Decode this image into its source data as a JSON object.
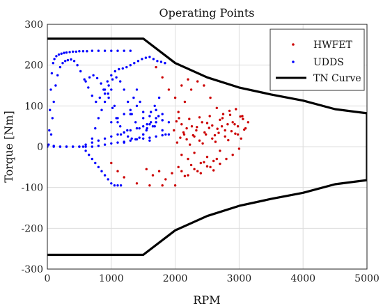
{
  "chart_data": {
    "type": "scatter",
    "title": "Operating Points",
    "xlabel": "RPM",
    "ylabel": "Torque [Nm]",
    "xlim": [
      0,
      5000
    ],
    "ylim": [
      -300,
      300
    ],
    "xticks": [
      "0",
      "1000",
      "2000",
      "3000",
      "4000",
      "5000"
    ],
    "yticks": [
      "300",
      "200",
      "100",
      "0",
      "-100",
      "-200",
      "-300"
    ],
    "grid": true,
    "legend_position": "top-right",
    "colors": {
      "HWFET": "#cc0000",
      "UDDS": "#0000ff",
      "TN Curve": "#000000"
    },
    "series": [
      {
        "name": "HWFET",
        "marker": "dot",
        "x": [
          1980,
          2020,
          2060,
          2100,
          2140,
          2180,
          2220,
          2260,
          2300,
          2340,
          2380,
          2420,
          2460,
          2500,
          2540,
          2580,
          2620,
          2660,
          2700,
          2740,
          2780,
          2820,
          2860,
          2900,
          2940,
          2980,
          3020,
          3060,
          3100,
          3140,
          2030,
          2080,
          2130,
          2180,
          2230,
          2280,
          2330,
          2380,
          2430,
          2480,
          2530,
          2580,
          2630,
          2680,
          2730,
          2780,
          2830,
          2880,
          2930,
          2980,
          3030,
          3080,
          2050,
          2150,
          2250,
          2350,
          2450,
          2550,
          2650,
          2750,
          2850,
          2950,
          3050,
          2100,
          2200,
          2300,
          2400,
          2500,
          2600,
          2700,
          2800,
          2900,
          3000,
          1550,
          1650,
          1750,
          1850,
          1950,
          2050,
          2150,
          2250,
          2350,
          2450,
          2550,
          2650,
          1000,
          1100,
          1200,
          1400,
          1600,
          1800,
          2000,
          2100,
          2200,
          2300,
          2400,
          2500,
          2600,
          2700,
          1700,
          1800,
          1900,
          2000,
          2100,
          2200
        ],
        "y": [
          40,
          62,
          70,
          55,
          30,
          45,
          68,
          50,
          25,
          48,
          72,
          60,
          35,
          58,
          75,
          52,
          28,
          44,
          66,
          70,
          40,
          55,
          78,
          60,
          32,
          50,
          74,
          68,
          45,
          60,
          10,
          22,
          35,
          18,
          5,
          28,
          40,
          15,
          8,
          30,
          46,
          20,
          12,
          34,
          50,
          25,
          16,
          38,
          55,
          30,
          20,
          42,
          85,
          110,
          140,
          160,
          150,
          120,
          95,
          80,
          88,
          92,
          75,
          -20,
          -30,
          -15,
          -40,
          -25,
          -35,
          -10,
          -30,
          -20,
          -5,
          -55,
          -70,
          -60,
          -80,
          -65,
          -50,
          -72,
          -45,
          -60,
          -38,
          -50,
          -30,
          -40,
          -60,
          -75,
          -90,
          -95,
          -95,
          -95,
          -60,
          -70,
          -55,
          -65,
          -48,
          -58,
          -42,
          195,
          170,
          140,
          120,
          150,
          165
        ]
      },
      {
        "name": "UDDS",
        "marker": "dot",
        "x": [
          20,
          30,
          40,
          55,
          70,
          90,
          110,
          140,
          180,
          220,
          260,
          300,
          350,
          400,
          450,
          500,
          560,
          620,
          700,
          800,
          900,
          1000,
          1100,
          1200,
          1300,
          60,
          80,
          100,
          130,
          160,
          200,
          240,
          280,
          320,
          370,
          420,
          470,
          520,
          580,
          640,
          700,
          760,
          820,
          880,
          940,
          1000,
          1060,
          1120,
          1180,
          1240,
          1300,
          1360,
          1420,
          1480,
          1540,
          1600,
          1660,
          1720,
          1780,
          1840,
          700,
          750,
          800,
          850,
          900,
          950,
          1000,
          1050,
          1100,
          1150,
          1200,
          1250,
          1300,
          1350,
          1400,
          1450,
          1500,
          1550,
          1600,
          1650,
          1700,
          1750,
          1800,
          1850,
          900,
          960,
          1020,
          1080,
          1140,
          1200,
          1260,
          1320,
          1380,
          1440,
          1500,
          1560,
          1620,
          1680,
          1740,
          1800,
          600,
          660,
          720,
          780,
          840,
          900,
          960,
          1020,
          1080,
          1140,
          1200,
          1260,
          1320,
          1380,
          1440,
          1500,
          1560,
          1620,
          1680,
          600,
          700,
          800,
          900,
          1000,
          1100,
          1200,
          1300,
          1400,
          1500,
          1600,
          1700,
          1800,
          100,
          200,
          300,
          400,
          500,
          600,
          700,
          800,
          900,
          1000,
          1100,
          1200,
          1300,
          1400,
          1500,
          1600,
          1700,
          1800,
          1900,
          1000,
          1100,
          1200,
          1300,
          1400,
          1500,
          1600,
          1700,
          1800,
          1900,
          0,
          100,
          200,
          300,
          400,
          500,
          560,
          600,
          650,
          700,
          750,
          800,
          850,
          900,
          950,
          1000,
          1050,
          1100,
          1150
        ],
        "y": [
          5,
          40,
          90,
          140,
          180,
          205,
          215,
          222,
          226,
          228,
          230,
          231,
          232,
          233,
          233,
          234,
          234,
          234,
          235,
          235,
          235,
          235,
          235,
          235,
          235,
          30,
          70,
          110,
          150,
          175,
          195,
          205,
          210,
          212,
          214,
          210,
          200,
          185,
          165,
          145,
          125,
          110,
          120,
          140,
          160,
          175,
          185,
          190,
          192,
          195,
          200,
          205,
          210,
          215,
          218,
          220,
          215,
          210,
          208,
          205,
          20,
          45,
          70,
          90,
          110,
          130,
          140,
          100,
          60,
          30,
          10,
          40,
          80,
          120,
          140,
          110,
          70,
          40,
          15,
          50,
          90,
          120,
          80,
          30,
          130,
          150,
          165,
          170,
          160,
          140,
          110,
          80,
          60,
          45,
          30,
          55,
          85,
          100,
          75,
          40,
          160,
          170,
          175,
          168,
          155,
          140,
          120,
          95,
          70,
          50,
          35,
          25,
          20,
          18,
          22,
          30,
          45,
          60,
          50,
          5,
          10,
          15,
          20,
          25,
          30,
          35,
          40,
          45,
          50,
          55,
          60,
          65,
          2,
          0,
          0,
          0,
          0,
          0,
          0,
          2,
          5,
          8,
          10,
          12,
          15,
          18,
          20,
          22,
          25,
          28,
          30,
          60,
          70,
          80,
          90,
          100,
          85,
          75,
          70,
          65,
          60,
          0,
          0,
          0,
          0,
          0,
          0,
          0,
          -10,
          -20,
          -30,
          -40,
          -50,
          -60,
          -70,
          -80,
          -90,
          -95,
          -95,
          -95
        ]
      },
      {
        "name": "TN Curve",
        "marker": "line",
        "x": [
          0,
          1500,
          2000,
          2500,
          3000,
          3500,
          4000,
          4500,
          5000,
          5000,
          4500,
          4000,
          3500,
          3000,
          2500,
          2000,
          1500,
          0
        ],
        "y": [
          265,
          265,
          205,
          170,
          145,
          128,
          113,
          92,
          82,
          -82,
          -92,
          -113,
          -128,
          -145,
          -170,
          -205,
          -265,
          -265
        ]
      }
    ]
  }
}
